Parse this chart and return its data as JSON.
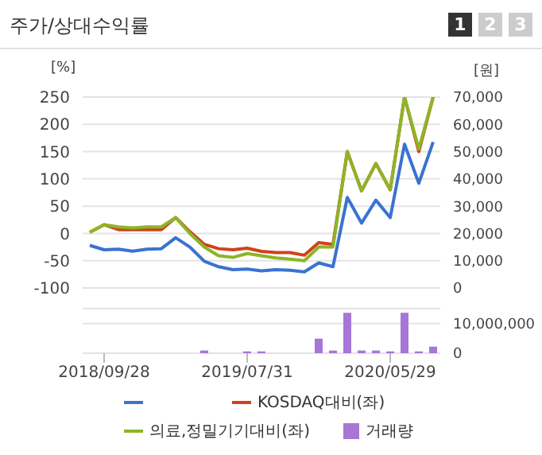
{
  "chart_data": [
    {
      "type": "line",
      "title": "주가/상대수익률",
      "annotations": [
        "1",
        "2",
        "3"
      ],
      "ylabel": "[%]",
      "y2label": "[원]",
      "categories": [
        null,
        "2018/09/28",
        null,
        null,
        null,
        null,
        null,
        null,
        null,
        null,
        null,
        "2019/07/31",
        null,
        null,
        null,
        null,
        null,
        null,
        null,
        null,
        null,
        "2020/05/29",
        null,
        null,
        null
      ],
      "series": [
        {
          "color": "#3a73d0",
          "axis": "y2",
          "values": [
            15600,
            14000,
            14200,
            13500,
            14200,
            14400,
            18400,
            15000,
            9800,
            7800,
            6700,
            6900,
            6300,
            6700,
            6500,
            5900,
            9200,
            7800,
            33200,
            23800,
            32200,
            25800,
            52700,
            38400,
            53500
          ]
        },
        {
          "name": "KOSDAQ대비(좌)",
          "color": "#d0421b",
          "values": [
            2,
            16,
            7,
            7,
            7,
            7,
            29,
            3,
            -20,
            -28,
            -30,
            -27,
            -33,
            -35,
            -35,
            -40,
            -17,
            -20,
            150,
            78,
            128,
            80,
            250,
            150,
            250
          ]
        },
        {
          "name": "의료,정밀기기대비(좌)",
          "color": "#8db526",
          "values": [
            2,
            16,
            12,
            10,
            12,
            12,
            29,
            0,
            -25,
            -41,
            -44,
            -37,
            -41,
            -45,
            -47,
            -50,
            -25,
            -25,
            150,
            78,
            128,
            80,
            250,
            155,
            250
          ]
        }
      ],
      "ylim": [
        -100,
        250
      ],
      "yticks": [
        -100,
        -50,
        0,
        50,
        100,
        150,
        200,
        250
      ],
      "y2lim": [
        0,
        70000
      ],
      "y2ticks": [
        0,
        {
          "value": 10000,
          "label": "10,000"
        },
        {
          "value": 20000,
          "label": "20,000"
        },
        {
          "value": 30000,
          "label": "30,000"
        },
        {
          "value": 40000,
          "label": "40,000"
        },
        {
          "value": 50000,
          "label": "50,000"
        },
        {
          "value": 60000,
          "label": "60,000"
        },
        {
          "value": 70000,
          "label": "70,000"
        }
      ],
      "grid": "y",
      "legend": "bottom",
      "tick_labels": "y"
    },
    {
      "type": "bar",
      "categories": [
        null,
        "2018/09/28",
        null,
        null,
        null,
        null,
        null,
        null,
        null,
        null,
        null,
        "2019/07/31",
        null,
        null,
        null,
        null,
        null,
        null,
        null,
        null,
        null,
        "2020/05/29",
        null,
        null,
        null
      ],
      "series": [
        {
          "name": "거래량",
          "color": "#a676d8",
          "values": [
            0,
            0,
            0,
            0,
            0,
            0,
            0,
            0,
            900000,
            0,
            0,
            600000,
            600000,
            0,
            0,
            0,
            4900000,
            900000,
            13600000,
            900000,
            900000,
            600000,
            13600000,
            600000,
            2200000
          ]
        }
      ],
      "ylim": [
        0,
        15000000
      ],
      "yticks": [
        0,
        {
          "value": 10000000,
          "label": "10,000,000"
        }
      ],
      "grid": "y",
      "legend": "bottom"
    }
  ]
}
